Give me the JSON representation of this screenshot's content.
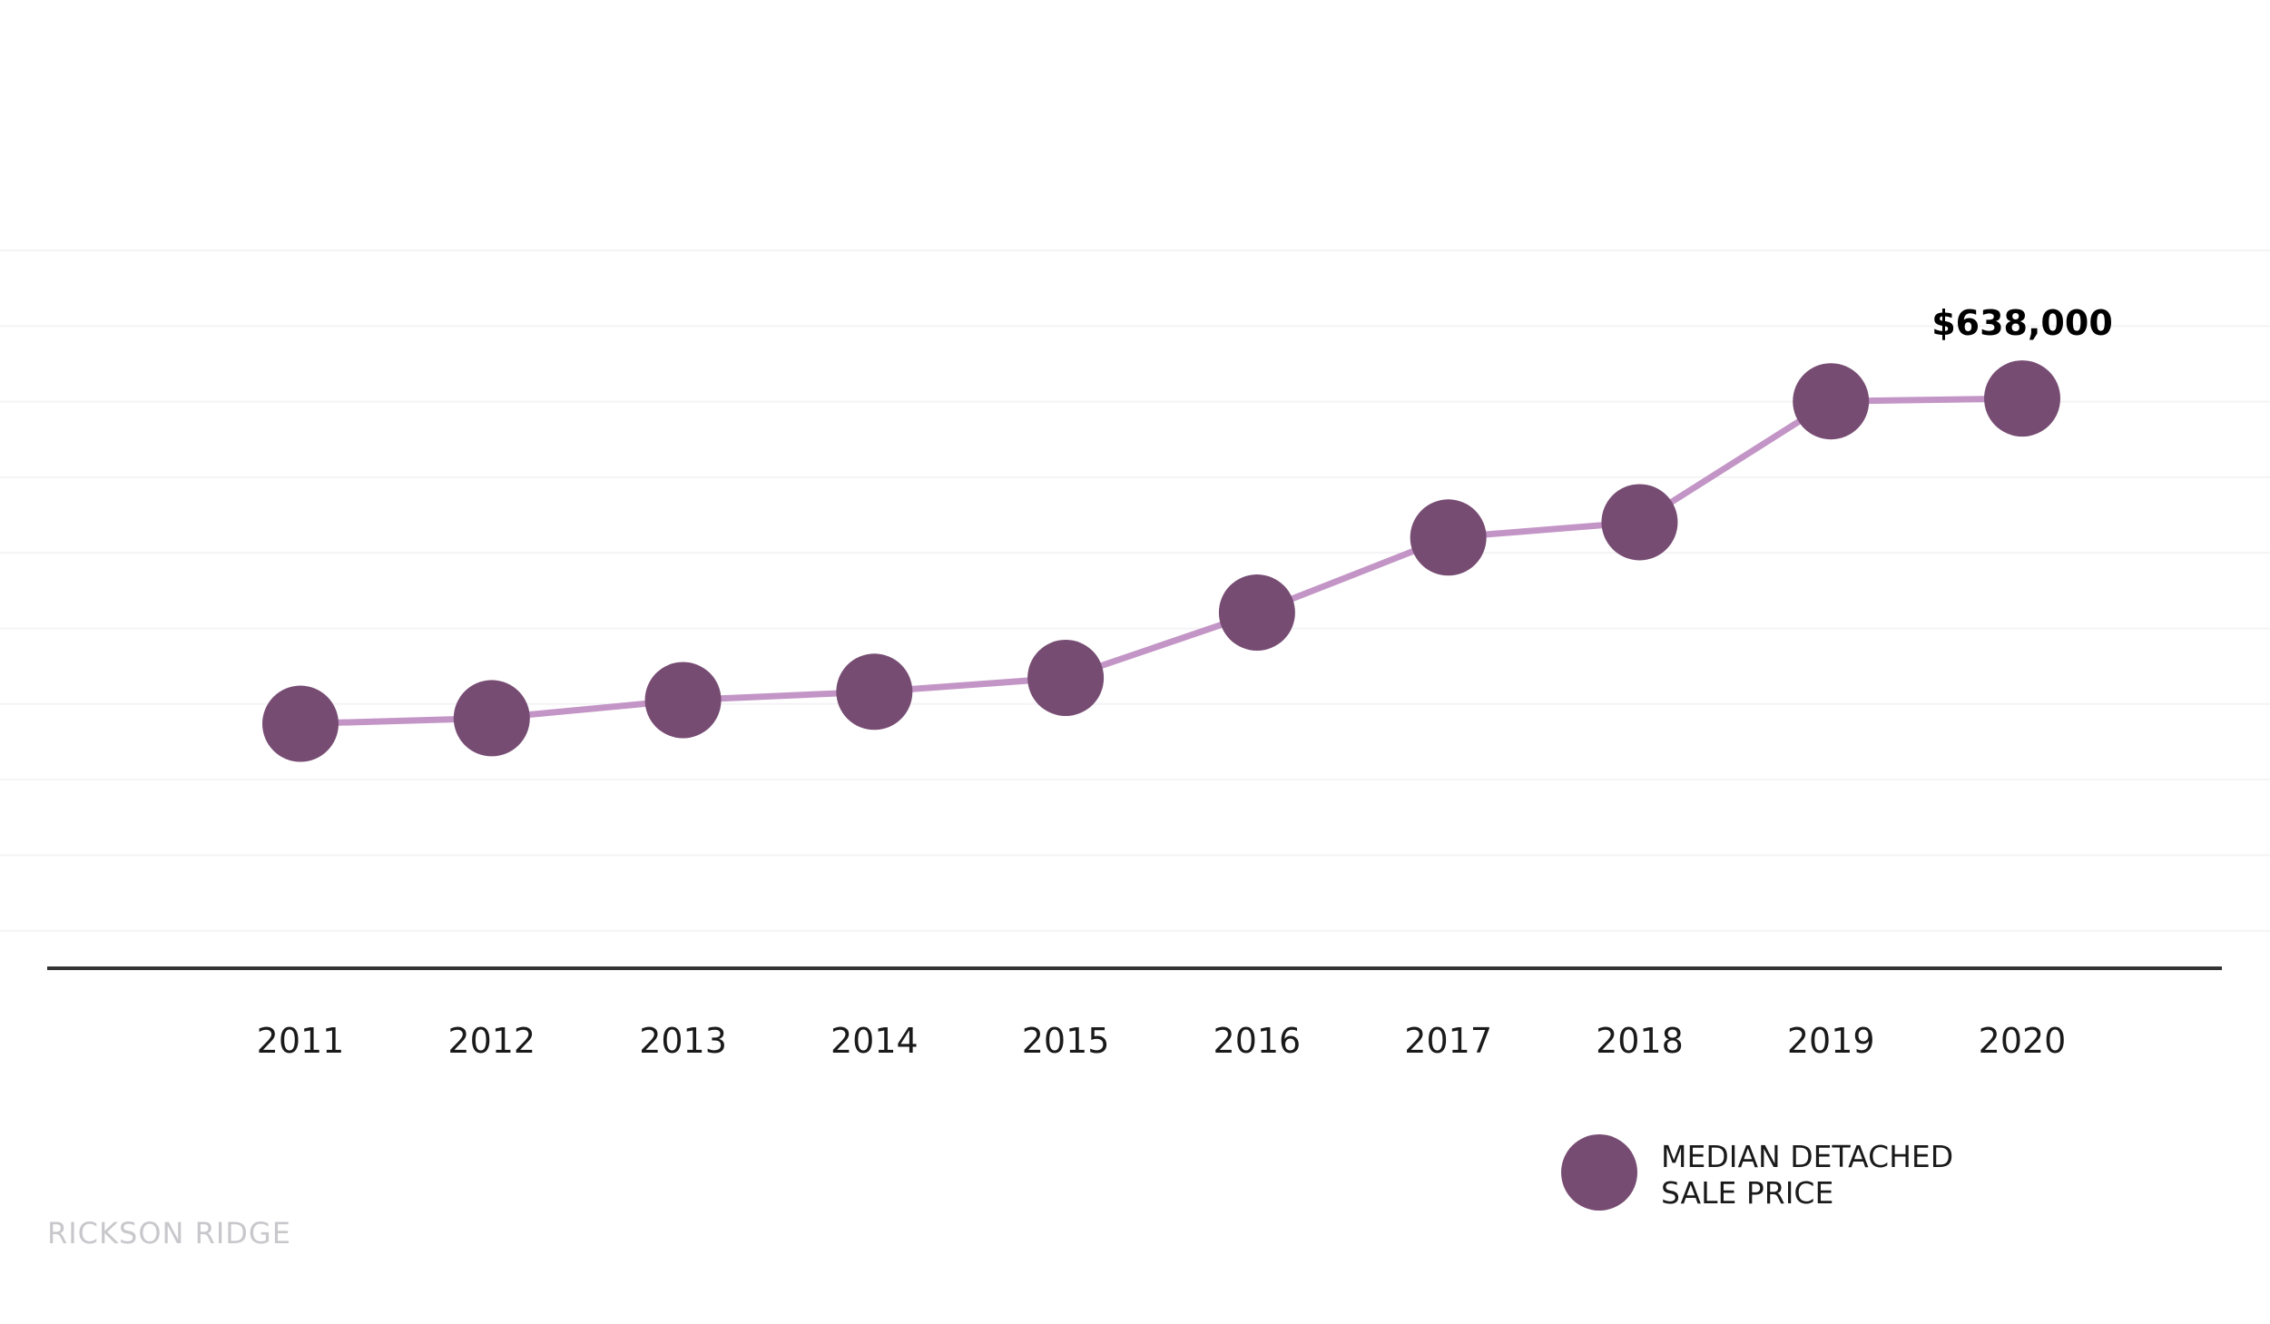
{
  "chart_data": {
    "type": "line",
    "x": [
      "2011",
      "2012",
      "2013",
      "2014",
      "2015",
      "2016",
      "2017",
      "2018",
      "2019",
      "2020"
    ],
    "series": [
      {
        "name": "MEDIAN DETACHED SALE PRICE",
        "values": [
          404000,
          408000,
          421000,
          427000,
          437000,
          484000,
          538000,
          549000,
          636000,
          638000
        ]
      }
    ],
    "data_labels": [
      {
        "index": 9,
        "text": "$638,000"
      }
    ],
    "ylim": [
      200000,
      800000
    ],
    "grid": true,
    "legend": {
      "position": "bottom-right",
      "lines": [
        "MEDIAN DETACHED",
        "SALE PRICE"
      ]
    },
    "colors": {
      "marker": "#774c73",
      "line": "#c395c6",
      "axis": "#333333",
      "grid": "#f4f4f6"
    }
  },
  "footer": {
    "brand": "RICKSON RIDGE"
  }
}
